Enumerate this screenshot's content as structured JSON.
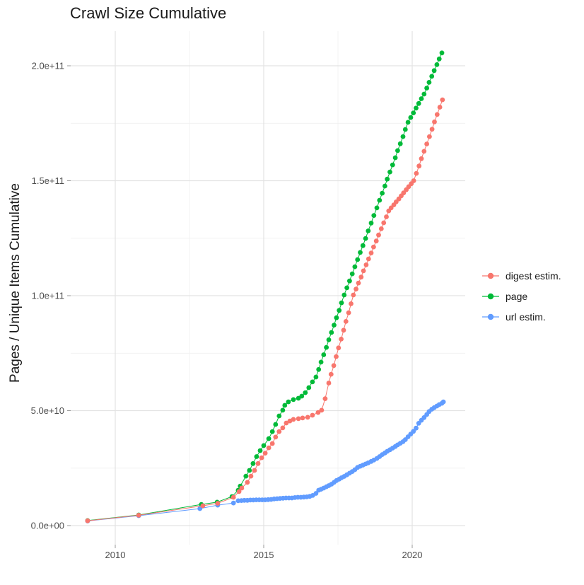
{
  "chart_data": {
    "type": "scatter",
    "title": "Crawl Size Cumulative",
    "xlabel": "",
    "ylabel": "Pages / Unique Items Cumulative",
    "units": "points are [year, cumulative items in billions (1e9)]",
    "background": "#FFFFFF",
    "grid": "on",
    "legend_position": "right",
    "xlim": [
      2008.5,
      2021.9
    ],
    "ylim": [
      0,
      215000000000.0
    ],
    "x_axis": {
      "tick_values": [
        2010,
        2015,
        2020
      ],
      "tick_labels": [
        "2010",
        "2015",
        "2020"
      ],
      "minor": [
        2012.5,
        2017.5
      ]
    },
    "y_axis": {
      "tick_values_e9": [
        0,
        50,
        100,
        150,
        200
      ],
      "tick_labels": [
        "0.0e+00",
        "5.0e+10",
        "1.0e+11",
        "1.5e+11",
        "2.0e+11"
      ],
      "minor_e9": [
        25,
        75,
        125,
        175
      ]
    },
    "draw_order": [
      1,
      2,
      0
    ],
    "series": [
      {
        "id": "digest-estim",
        "name": "digest estim.",
        "color": "#F8766D",
        "points": [
          [
            2009.07,
            2.1
          ],
          [
            2010.79,
            4.5
          ],
          [
            2012.95,
            8.6
          ],
          [
            2013.45,
            9.7
          ],
          [
            2013.98,
            12.3
          ],
          [
            2014.17,
            14.8
          ],
          [
            2014.26,
            16.3
          ],
          [
            2014.45,
            18.8
          ],
          [
            2014.57,
            21.5
          ],
          [
            2014.69,
            24.0
          ],
          [
            2014.81,
            27.0
          ],
          [
            2014.93,
            29.5
          ],
          [
            2015.05,
            31.5
          ],
          [
            2015.17,
            33.8
          ],
          [
            2015.29,
            35.7
          ],
          [
            2015.4,
            38.5
          ],
          [
            2015.52,
            40.9
          ],
          [
            2015.64,
            42.5
          ],
          [
            2015.76,
            44.6
          ],
          [
            2015.88,
            45.5
          ],
          [
            2016.0,
            46.2
          ],
          [
            2016.17,
            46.5
          ],
          [
            2016.31,
            46.8
          ],
          [
            2016.48,
            47.1
          ],
          [
            2016.64,
            48.0
          ],
          [
            2016.83,
            49.2
          ],
          [
            2016.95,
            50.2
          ],
          [
            2017.07,
            55.2
          ],
          [
            2017.19,
            62.0
          ],
          [
            2017.27,
            65.8
          ],
          [
            2017.36,
            69.6
          ],
          [
            2017.44,
            73.5
          ],
          [
            2017.52,
            77.3
          ],
          [
            2017.61,
            81.1
          ],
          [
            2017.69,
            85.0
          ],
          [
            2017.77,
            88.8
          ],
          [
            2017.86,
            92.6
          ],
          [
            2017.94,
            96.5
          ],
          [
            2018.02,
            100.3
          ],
          [
            2018.11,
            102.9
          ],
          [
            2018.19,
            105.5
          ],
          [
            2018.28,
            108.1
          ],
          [
            2018.36,
            110.8
          ],
          [
            2018.45,
            113.4
          ],
          [
            2018.53,
            116.0
          ],
          [
            2018.62,
            118.6
          ],
          [
            2018.7,
            121.2
          ],
          [
            2018.79,
            123.8
          ],
          [
            2018.87,
            126.4
          ],
          [
            2018.96,
            129.1
          ],
          [
            2019.04,
            131.7
          ],
          [
            2019.13,
            134.3
          ],
          [
            2019.21,
            136.9
          ],
          [
            2019.29,
            138.2
          ],
          [
            2019.38,
            139.5
          ],
          [
            2019.46,
            140.8
          ],
          [
            2019.55,
            142.1
          ],
          [
            2019.63,
            143.4
          ],
          [
            2019.71,
            144.7
          ],
          [
            2019.8,
            146.1
          ],
          [
            2019.88,
            147.4
          ],
          [
            2019.97,
            148.7
          ],
          [
            2020.05,
            150.0
          ],
          [
            2020.14,
            153.2
          ],
          [
            2020.23,
            156.4
          ],
          [
            2020.31,
            159.6
          ],
          [
            2020.4,
            162.8
          ],
          [
            2020.49,
            166.0
          ],
          [
            2020.58,
            169.2
          ],
          [
            2020.67,
            172.4
          ],
          [
            2020.75,
            175.6
          ],
          [
            2020.84,
            178.8
          ],
          [
            2020.93,
            182.0
          ],
          [
            2021.02,
            185.2
          ]
        ]
      },
      {
        "id": "page",
        "name": "page",
        "color": "#00BA38",
        "points": [
          [
            2009.07,
            2.2
          ],
          [
            2010.79,
            4.6
          ],
          [
            2012.9,
            9.2
          ],
          [
            2013.43,
            10.2
          ],
          [
            2013.93,
            12.6
          ],
          [
            2014.14,
            15.4
          ],
          [
            2014.21,
            17.2
          ],
          [
            2014.4,
            21.5
          ],
          [
            2014.52,
            24.0
          ],
          [
            2014.64,
            27.0
          ],
          [
            2014.76,
            30.0
          ],
          [
            2014.88,
            32.6
          ],
          [
            2015.0,
            34.8
          ],
          [
            2015.17,
            37.8
          ],
          [
            2015.29,
            40.9
          ],
          [
            2015.4,
            44.0
          ],
          [
            2015.52,
            47.7
          ],
          [
            2015.64,
            50.2
          ],
          [
            2015.71,
            52.3
          ],
          [
            2015.83,
            53.8
          ],
          [
            2016.0,
            54.8
          ],
          [
            2016.17,
            55.4
          ],
          [
            2016.28,
            56.3
          ],
          [
            2016.4,
            57.8
          ],
          [
            2016.52,
            60.0
          ],
          [
            2016.64,
            62.5
          ],
          [
            2016.76,
            64.6
          ],
          [
            2016.85,
            67.9
          ],
          [
            2016.93,
            71.1
          ],
          [
            2017.02,
            74.3
          ],
          [
            2017.11,
            77.5
          ],
          [
            2017.19,
            80.8
          ],
          [
            2017.28,
            84.0
          ],
          [
            2017.37,
            87.2
          ],
          [
            2017.45,
            90.4
          ],
          [
            2017.54,
            93.6
          ],
          [
            2017.62,
            96.9
          ],
          [
            2017.71,
            100.3
          ],
          [
            2017.8,
            103.4
          ],
          [
            2017.89,
            106.4
          ],
          [
            2017.98,
            109.5
          ],
          [
            2018.07,
            112.6
          ],
          [
            2018.16,
            115.7
          ],
          [
            2018.25,
            118.8
          ],
          [
            2018.34,
            121.8
          ],
          [
            2018.43,
            124.9
          ],
          [
            2018.52,
            128.2
          ],
          [
            2018.62,
            131.6
          ],
          [
            2018.71,
            134.9
          ],
          [
            2018.81,
            138.2
          ],
          [
            2018.9,
            141.5
          ],
          [
            2018.99,
            144.6
          ],
          [
            2019.08,
            147.7
          ],
          [
            2019.16,
            150.7
          ],
          [
            2019.25,
            153.8
          ],
          [
            2019.34,
            156.9
          ],
          [
            2019.43,
            160.0
          ],
          [
            2019.51,
            163.1
          ],
          [
            2019.6,
            166.1
          ],
          [
            2019.69,
            169.2
          ],
          [
            2019.77,
            172.3
          ],
          [
            2019.86,
            175.4
          ],
          [
            2019.95,
            177.5
          ],
          [
            2020.04,
            179.5
          ],
          [
            2020.13,
            181.6
          ],
          [
            2020.22,
            183.6
          ],
          [
            2020.31,
            185.7
          ],
          [
            2020.4,
            187.7
          ],
          [
            2020.49,
            190.3
          ],
          [
            2020.57,
            192.8
          ],
          [
            2020.66,
            195.4
          ],
          [
            2020.74,
            197.9
          ],
          [
            2020.83,
            200.5
          ],
          [
            2020.91,
            203.0
          ],
          [
            2021.0,
            205.6
          ]
        ]
      },
      {
        "id": "url-estim",
        "name": "url estim.",
        "color": "#619CFF",
        "points": [
          [
            2009.07,
            2.0
          ],
          [
            2010.79,
            4.3
          ],
          [
            2012.85,
            7.4
          ],
          [
            2013.45,
            8.9
          ],
          [
            2013.98,
            9.8
          ],
          [
            2014.14,
            10.8
          ],
          [
            2014.25,
            10.9
          ],
          [
            2014.35,
            11.0
          ],
          [
            2014.45,
            11.0
          ],
          [
            2014.55,
            11.1
          ],
          [
            2014.65,
            11.1
          ],
          [
            2014.75,
            11.2
          ],
          [
            2014.85,
            11.2
          ],
          [
            2014.95,
            11.2
          ],
          [
            2015.05,
            11.2
          ],
          [
            2015.15,
            11.3
          ],
          [
            2015.25,
            11.4
          ],
          [
            2015.35,
            11.6
          ],
          [
            2015.45,
            11.7
          ],
          [
            2015.55,
            11.8
          ],
          [
            2015.65,
            11.9
          ],
          [
            2015.75,
            12.0
          ],
          [
            2015.85,
            12.0
          ],
          [
            2015.95,
            12.0
          ],
          [
            2016.05,
            12.2
          ],
          [
            2016.15,
            12.3
          ],
          [
            2016.25,
            12.3
          ],
          [
            2016.35,
            12.4
          ],
          [
            2016.45,
            12.5
          ],
          [
            2016.55,
            12.7
          ],
          [
            2016.65,
            13.1
          ],
          [
            2016.76,
            14.0
          ],
          [
            2016.85,
            15.4
          ],
          [
            2016.93,
            15.8
          ],
          [
            2017.02,
            16.3
          ],
          [
            2017.11,
            16.9
          ],
          [
            2017.19,
            17.4
          ],
          [
            2017.28,
            18.0
          ],
          [
            2017.37,
            18.8
          ],
          [
            2017.45,
            19.6
          ],
          [
            2017.54,
            20.2
          ],
          [
            2017.62,
            20.8
          ],
          [
            2017.71,
            21.4
          ],
          [
            2017.8,
            22.1
          ],
          [
            2017.89,
            22.8
          ],
          [
            2017.98,
            23.5
          ],
          [
            2018.07,
            24.3
          ],
          [
            2018.16,
            25.3
          ],
          [
            2018.25,
            25.8
          ],
          [
            2018.34,
            26.3
          ],
          [
            2018.43,
            26.8
          ],
          [
            2018.52,
            27.3
          ],
          [
            2018.62,
            27.9
          ],
          [
            2018.71,
            28.5
          ],
          [
            2018.81,
            29.2
          ],
          [
            2018.9,
            30.0
          ],
          [
            2018.99,
            30.9
          ],
          [
            2019.08,
            31.6
          ],
          [
            2019.16,
            32.3
          ],
          [
            2019.25,
            33.0
          ],
          [
            2019.34,
            33.7
          ],
          [
            2019.43,
            34.4
          ],
          [
            2019.51,
            35.1
          ],
          [
            2019.6,
            35.8
          ],
          [
            2019.69,
            36.5
          ],
          [
            2019.77,
            37.4
          ],
          [
            2019.86,
            38.6
          ],
          [
            2019.95,
            39.8
          ],
          [
            2020.04,
            41.0
          ],
          [
            2020.13,
            42.4
          ],
          [
            2020.22,
            44.5
          ],
          [
            2020.31,
            45.8
          ],
          [
            2020.4,
            47.0
          ],
          [
            2020.49,
            48.3
          ],
          [
            2020.57,
            49.6
          ],
          [
            2020.66,
            50.6
          ],
          [
            2020.74,
            51.3
          ],
          [
            2020.83,
            52.0
          ],
          [
            2020.91,
            52.6
          ],
          [
            2021.0,
            53.2
          ],
          [
            2021.05,
            53.8
          ]
        ]
      }
    ]
  }
}
